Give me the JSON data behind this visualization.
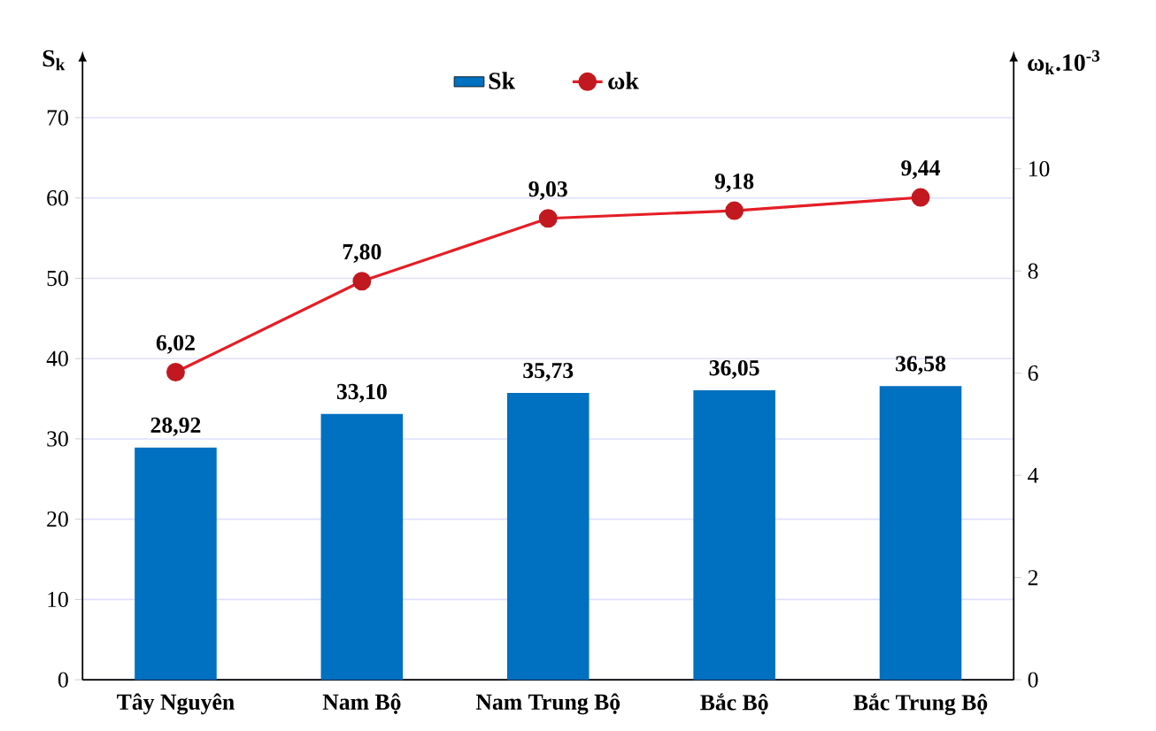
{
  "chart_data": {
    "type": "bar",
    "ylabel": "S$_{k}$",
    "y2label": "ω$_{k}$.10$^{-3}$",
    "categories": [
      "Tây Nguyên",
      "Nam Bộ",
      "Nam Trung Bộ",
      "Bắc Bộ",
      "Bắc Trung Bộ"
    ],
    "series": [
      {
        "name": "Sk",
        "color": "#0070c0",
        "values": [
          28.92,
          33.1,
          35.73,
          36.05,
          36.58
        ],
        "value_labels": [
          "28,92",
          "33,10",
          "35,73",
          "36,05",
          "36,58"
        ]
      },
      {
        "name": "ωk",
        "type": "line",
        "axis": "y2",
        "color": "#e41e26",
        "marker": "circle",
        "values": [
          6.02,
          7.8,
          9.03,
          9.18,
          9.44
        ],
        "value_labels": [
          "6,02",
          "7,80",
          "9,03",
          "9,18",
          "9,44"
        ]
      }
    ],
    "ylim": [
      0,
      77
    ],
    "yticks": [
      0,
      10,
      20,
      30,
      40,
      50,
      60,
      70
    ],
    "y2lim": [
      0,
      12.1
    ],
    "y2ticks": [
      0,
      2,
      4,
      6,
      8,
      10
    ],
    "grid": "y",
    "legend": "top"
  }
}
